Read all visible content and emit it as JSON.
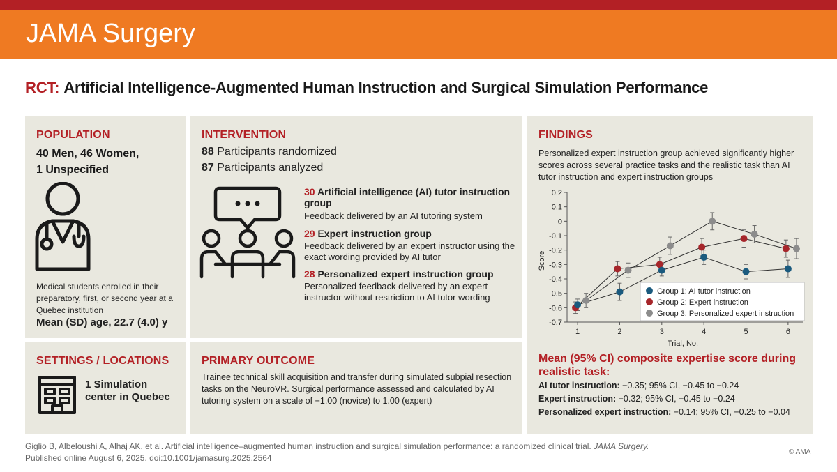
{
  "brand": "JAMA Surgery",
  "title": {
    "prefix": "RCT:",
    "text": "Artificial Intelligence-Augmented Human Instruction and Surgical Simulation Performance"
  },
  "population": {
    "heading": "POPULATION",
    "line1": "40 Men, 46 Women,",
    "line2": "1 Unspecified",
    "icon": "physician-icon",
    "description": "Medical students enrolled in their preparatory, first, or second year at a Quebec institution",
    "age": "Mean (SD) age, 22.7 (4.0) y"
  },
  "intervention": {
    "heading": "INTERVENTION",
    "randomized_num": "88",
    "randomized_text": " Participants randomized",
    "analyzed_num": "87",
    "analyzed_text": " Participants analyzed",
    "icon": "group-discussion-icon",
    "groups": [
      {
        "num": "30",
        "title": " Artificial intelligence (AI) tutor instruction group",
        "desc": "Feedback delivered by an AI tutoring system"
      },
      {
        "num": "29",
        "title": " Expert instruction group",
        "desc": "Feedback delivered by an expert instructor using the exact wording provided by AI tutor"
      },
      {
        "num": "28",
        "title": " Personalized expert instruction group",
        "desc": "Personalized feedback delivered by an expert instructor without restriction to AI tutor wording"
      }
    ]
  },
  "findings": {
    "heading": "FINDINGS",
    "intro": "Personalized expert instruction group achieved significantly higher scores across several practice tasks and the realistic task than AI tutor instruction and expert instruction groups",
    "result_heading": "Mean (95% CI) composite expertise score during realistic task:",
    "results": [
      {
        "label": "AI tutor instruction:",
        "value": " −0.35; 95% CI, −0.45 to −0.24"
      },
      {
        "label": "Expert instruction:",
        "value": " −0.32; 95% CI, −0.45 to −0.24"
      },
      {
        "label": "Personalized expert instruction:",
        "value": " −0.14; 95% CI, −0.25 to −0.04"
      }
    ]
  },
  "settings": {
    "heading": "SETTINGS / LOCATIONS",
    "line1": "1 Simulation",
    "line2": "center in Quebec",
    "icon": "building-icon"
  },
  "outcome": {
    "heading": "PRIMARY OUTCOME",
    "text": "Trainee technical skill acquisition and transfer during simulated subpial resection tasks on the NeuroVR. Surgical performance assessed and calculated by AI tutoring system on a scale of −1.00 (novice) to 1.00 (expert)"
  },
  "citation": {
    "line1_plain": "Giglio B, Albeloushi A, Alhaj AK, et al. Artificial intelligence–augmented human instruction and surgical simulation performance: a randomized clinical trial. ",
    "line1_journal": "JAMA Surgery.",
    "line2": "Published online August 6, 2025. doi:10.1001/jamasurg.2025.2564"
  },
  "copyright": "© AMA",
  "chart_data": {
    "type": "line",
    "xlabel": "Trial, No.",
    "ylabel": "Score",
    "x": [
      1,
      2,
      3,
      4,
      5,
      6
    ],
    "xlim": [
      0.75,
      6.35
    ],
    "ylim": [
      -0.7,
      0.2
    ],
    "yticks": [
      0.2,
      0.1,
      0,
      -0.1,
      -0.2,
      -0.3,
      -0.4,
      -0.5,
      -0.6,
      -0.7
    ],
    "ytick_labels": [
      "0.2",
      "0.1",
      "0",
      "-0.1",
      "-0.2",
      "-0.3",
      "-0.4",
      "-0.5",
      "-0.6",
      "-0.7"
    ],
    "legend_position": "bottom-right",
    "series": [
      {
        "name": "Group 1: AI tutor instruction",
        "color": "#1a5a7e",
        "x": [
          1,
          2,
          3,
          4,
          5,
          6
        ],
        "values": [
          -0.58,
          -0.49,
          -0.34,
          -0.25,
          -0.35,
          -0.33
        ],
        "err": [
          0.04,
          0.06,
          0.04,
          0.05,
          0.05,
          0.06
        ]
      },
      {
        "name": "Group 2: Expert instruction",
        "color": "#a6262b",
        "x": [
          0.95,
          1.95,
          2.95,
          3.95,
          4.95,
          5.95
        ],
        "values": [
          -0.6,
          -0.33,
          -0.3,
          -0.18,
          -0.12,
          -0.19
        ],
        "err": [
          0.04,
          0.05,
          0.05,
          0.06,
          0.06,
          0.06
        ]
      },
      {
        "name": "Group 3: Personalized expert instruction",
        "color": "#8c8c8c",
        "x": [
          1.2,
          2.2,
          3.2,
          4.2,
          5.2,
          6.2
        ],
        "values": [
          -0.55,
          -0.34,
          -0.17,
          0.0,
          -0.09,
          -0.19
        ],
        "err": [
          0.05,
          0.05,
          0.06,
          0.06,
          0.06,
          0.07
        ]
      }
    ]
  }
}
